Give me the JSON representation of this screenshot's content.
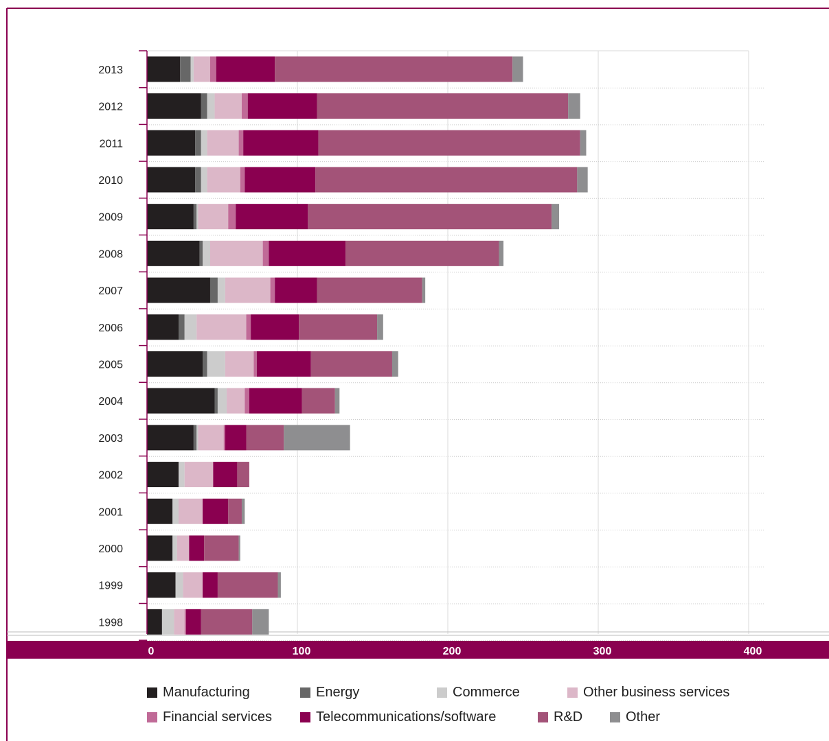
{
  "chart_data": {
    "type": "bar",
    "orientation": "horizontal",
    "stacked": true,
    "categories": [
      "2013",
      "2012",
      "2011",
      "2010",
      "2009",
      "2008",
      "2007",
      "2006",
      "2005",
      "2004",
      "2003",
      "2002",
      "2001",
      "2000",
      "1999",
      "1998"
    ],
    "series": [
      {
        "name": "Manufacturing",
        "color": "#231f20",
        "values": [
          22,
          36,
          32,
          32,
          31,
          35,
          42,
          21,
          37,
          45,
          31,
          21,
          17,
          17,
          19,
          10
        ]
      },
      {
        "name": "Energy",
        "color": "#676767",
        "values": [
          7,
          4,
          4,
          4,
          2,
          2,
          5,
          4,
          3,
          2,
          2,
          0,
          0,
          0,
          0,
          0
        ]
      },
      {
        "name": "Commerce",
        "color": "#cccccc",
        "values": [
          2,
          5,
          4,
          4,
          1,
          5,
          5,
          8,
          12,
          6,
          1,
          4,
          4,
          3,
          5,
          8
        ]
      },
      {
        "name": "Other business services",
        "color": "#dcb7c8",
        "values": [
          11,
          18,
          21,
          22,
          20,
          35,
          30,
          33,
          19,
          12,
          17,
          19,
          16,
          8,
          13,
          7
        ]
      },
      {
        "name": "Financial services",
        "color": "#c06a97",
        "values": [
          4,
          4,
          3,
          3,
          5,
          4,
          3,
          3,
          2,
          3,
          1,
          0,
          0,
          0,
          0,
          1
        ]
      },
      {
        "name": "Telecommunications/software",
        "color": "#8a0050",
        "values": [
          39,
          46,
          50,
          47,
          48,
          51,
          28,
          32,
          36,
          35,
          14,
          16,
          17,
          10,
          10,
          10
        ]
      },
      {
        "name": "R&D",
        "color": "#a35378",
        "values": [
          158,
          167,
          174,
          174,
          162,
          102,
          70,
          52,
          54,
          22,
          25,
          8,
          9,
          23,
          40,
          34
        ]
      },
      {
        "name": "Other",
        "color": "#8e8e90",
        "values": [
          7,
          8,
          4,
          7,
          5,
          3,
          2,
          4,
          4,
          3,
          44,
          0,
          2,
          1,
          2,
          11
        ]
      }
    ],
    "xlim": [
      0,
      400
    ],
    "xticks": [
      "0",
      "100",
      "200",
      "300",
      "400"
    ],
    "grid": true,
    "legend_position": "bottom"
  }
}
